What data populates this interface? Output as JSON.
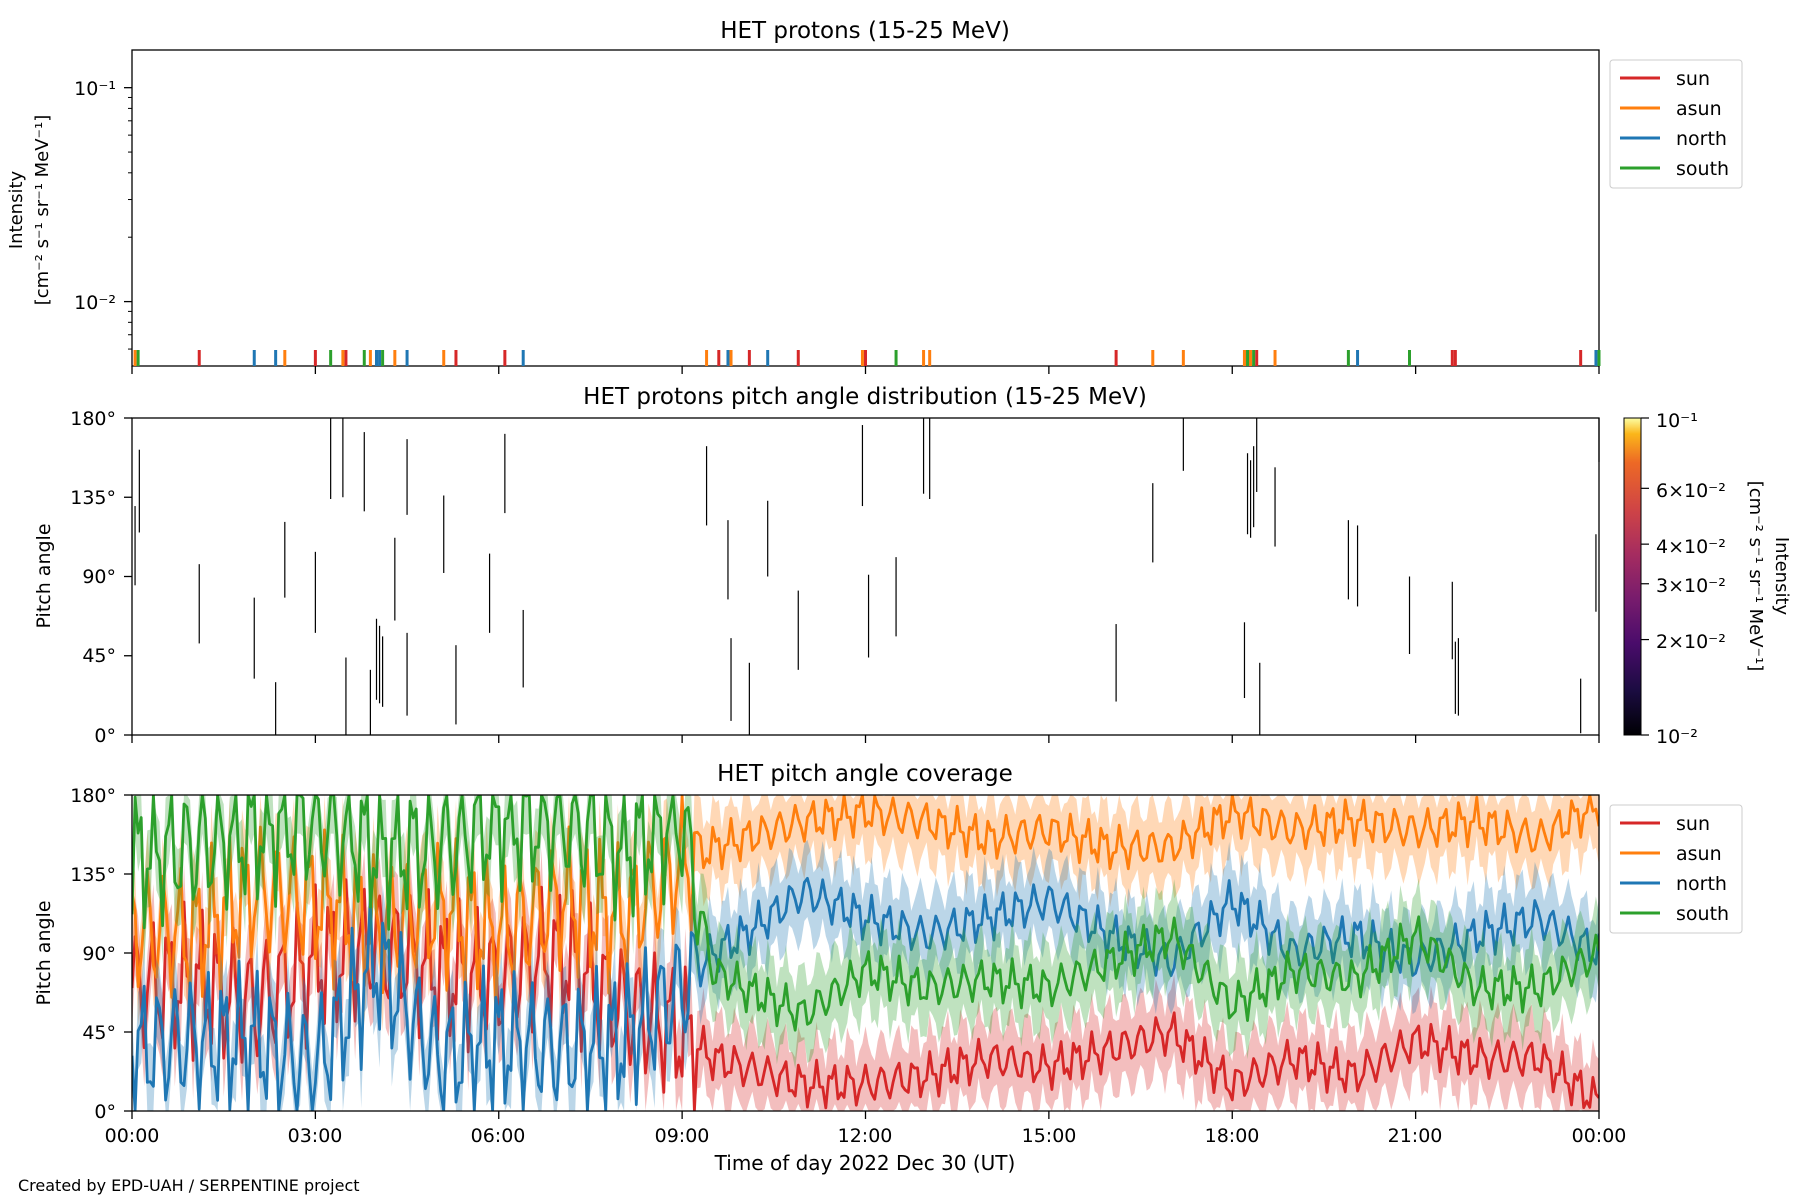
{
  "footer": {
    "credit": "Created by EPD-UAH / SERPENTINE project"
  },
  "colors": {
    "sun": "#d62728",
    "asun": "#ff7f0e",
    "north": "#1f77b4",
    "south": "#2ca02c"
  },
  "chart_data": [
    {
      "type": "line",
      "title": "HET protons (15-25 MeV)",
      "ylabel_line1": "Intensity",
      "ylabel_line2": "[cm⁻² s⁻¹ sr⁻¹ MeV⁻¹]",
      "yscale": "log",
      "ylim": [
        0.005,
        0.15
      ],
      "y_tick_labels": [
        "10⁻¹",
        "10⁻²"
      ],
      "y_tick_values": [
        0.1,
        0.01
      ],
      "xlim": [
        0,
        24
      ],
      "legend": [
        "sun",
        "asun",
        "north",
        "south"
      ],
      "legend_position": "right",
      "series": [
        {
          "name": "sun",
          "times": [
            1.1,
            3.0,
            3.5,
            5.3,
            6.1,
            9.6,
            10.1,
            10.9,
            12.0,
            16.1,
            18.2,
            18.3,
            18.4,
            21.6,
            21.65,
            23.7
          ]
        },
        {
          "name": "asun",
          "times": [
            0.05,
            2.5,
            3.45,
            3.9,
            4.3,
            5.1,
            9.4,
            9.8,
            11.95,
            12.95,
            13.05,
            16.7,
            17.2,
            18.2,
            18.3,
            18.7
          ]
        },
        {
          "name": "north",
          "times": [
            2.0,
            2.35,
            4.0,
            4.05,
            4.5,
            6.4,
            9.75,
            10.4,
            20.05,
            23.95
          ]
        },
        {
          "name": "south",
          "times": [
            0.1,
            3.25,
            3.8,
            4.1,
            12.5,
            18.25,
            18.35,
            19.9,
            20.9,
            24.0
          ]
        }
      ]
    },
    {
      "type": "heatmap",
      "title": "HET protons pitch angle distribution (15-25 MeV)",
      "ylabel": "Pitch angle",
      "ylim": [
        0,
        180
      ],
      "y_tick_labels": [
        "180°",
        "135°",
        "90°",
        "45°",
        "0°"
      ],
      "y_tick_values": [
        180,
        135,
        90,
        45,
        0
      ],
      "xlim": [
        0,
        24
      ],
      "colorbar": {
        "label_line1": "Intensity",
        "label_line2": "[cm⁻² s⁻¹ sr⁻¹ MeV⁻¹]",
        "scale": "log",
        "range": [
          0.01,
          0.1
        ],
        "tick_labels": [
          "10⁻¹",
          "6×10⁻²",
          "4×10⁻²",
          "3×10⁻²",
          "2×10⁻²",
          "10⁻²"
        ],
        "tick_values": [
          0.1,
          0.06,
          0.04,
          0.03,
          0.02,
          0.01
        ]
      },
      "segments": [
        [
          0.05,
          85,
          130
        ],
        [
          0.12,
          115,
          162
        ],
        [
          1.1,
          52,
          97
        ],
        [
          2.0,
          32,
          78
        ],
        [
          2.35,
          0,
          30
        ],
        [
          2.5,
          78,
          121
        ],
        [
          3.0,
          58,
          104
        ],
        [
          3.25,
          134,
          180
        ],
        [
          3.5,
          0,
          44
        ],
        [
          3.45,
          135,
          180
        ],
        [
          3.8,
          127,
          172
        ],
        [
          3.9,
          0,
          37
        ],
        [
          4.0,
          20,
          66
        ],
        [
          4.05,
          18,
          62
        ],
        [
          4.1,
          16,
          56
        ],
        [
          4.3,
          65,
          112
        ],
        [
          4.5,
          11,
          58
        ],
        [
          4.5,
          125,
          168
        ],
        [
          5.1,
          92,
          136
        ],
        [
          5.3,
          6,
          51
        ],
        [
          5.85,
          58,
          103
        ],
        [
          6.1,
          126,
          171
        ],
        [
          6.4,
          27,
          71
        ],
        [
          9.4,
          119,
          164
        ],
        [
          9.75,
          77,
          122
        ],
        [
          9.8,
          8,
          55
        ],
        [
          10.1,
          0,
          41
        ],
        [
          10.4,
          90,
          133
        ],
        [
          10.9,
          37,
          82
        ],
        [
          11.95,
          130,
          176
        ],
        [
          12.05,
          44,
          91
        ],
        [
          12.5,
          56,
          101
        ],
        [
          12.95,
          137,
          180
        ],
        [
          13.05,
          134,
          180
        ],
        [
          16.1,
          19,
          63
        ],
        [
          16.7,
          98,
          143
        ],
        [
          17.2,
          150,
          180
        ],
        [
          18.2,
          21,
          64
        ],
        [
          18.25,
          114,
          160
        ],
        [
          18.3,
          112,
          156
        ],
        [
          18.35,
          118,
          164
        ],
        [
          18.4,
          138,
          180
        ],
        [
          18.45,
          0,
          41
        ],
        [
          18.7,
          107,
          152
        ],
        [
          19.9,
          77,
          122
        ],
        [
          20.05,
          73,
          119
        ],
        [
          20.9,
          46,
          90
        ],
        [
          21.6,
          43,
          87
        ],
        [
          21.65,
          12,
          53
        ],
        [
          21.7,
          11,
          55
        ],
        [
          23.7,
          1,
          32
        ],
        [
          23.95,
          70,
          114
        ],
        [
          24.0,
          155,
          180
        ]
      ]
    },
    {
      "type": "line",
      "title": "HET pitch angle coverage",
      "ylabel": "Pitch angle",
      "xlabel": "Time of day 2022 Dec 30 (UT)",
      "ylim": [
        0,
        180
      ],
      "y_tick_labels": [
        "180°",
        "135°",
        "90°",
        "45°",
        "0°"
      ],
      "y_tick_values": [
        180,
        135,
        90,
        45,
        0
      ],
      "xlim": [
        0,
        24
      ],
      "x_tick_labels": [
        "00:00",
        "03:00",
        "06:00",
        "09:00",
        "12:00",
        "15:00",
        "18:00",
        "21:00",
        "00:00"
      ],
      "x_tick_values": [
        0,
        3,
        6,
        9,
        12,
        15,
        18,
        21,
        24
      ],
      "legend": [
        "sun",
        "asun",
        "north",
        "south"
      ],
      "legend_position": "right",
      "series": [
        {
          "name": "sun",
          "x": [
            0,
            1,
            2,
            3,
            4,
            5,
            6,
            7,
            8,
            9,
            9.5,
            10,
            11,
            12,
            13,
            14,
            15,
            16,
            17,
            18,
            19,
            20,
            21,
            22,
            23,
            24
          ],
          "y": [
            70,
            75,
            60,
            85,
            95,
            80,
            75,
            90,
            60,
            45,
            30,
            25,
            15,
            15,
            20,
            30,
            25,
            35,
            45,
            15,
            30,
            20,
            40,
            30,
            30,
            5
          ]
        },
        {
          "name": "asun",
          "x": [
            0,
            1,
            2,
            3,
            4,
            5,
            6,
            7,
            8,
            9,
            9.5,
            10,
            11,
            12,
            13,
            14,
            15,
            16,
            17,
            18,
            19,
            20,
            21,
            22,
            23,
            24
          ],
          "y": [
            105,
            100,
            125,
            120,
            105,
            115,
            100,
            120,
            110,
            140,
            150,
            155,
            165,
            170,
            165,
            155,
            160,
            150,
            150,
            170,
            160,
            165,
            160,
            165,
            155,
            175
          ]
        },
        {
          "name": "north",
          "x": [
            0,
            1,
            2,
            3,
            4,
            5,
            6,
            7,
            8,
            9,
            9.5,
            10,
            11,
            12,
            13,
            14,
            15,
            16,
            17,
            18,
            19,
            20,
            21,
            22,
            23,
            24
          ],
          "y": [
            35,
            40,
            40,
            25,
            85,
            30,
            40,
            35,
            40,
            70,
            90,
            100,
            125,
            110,
            100,
            110,
            120,
            100,
            85,
            120,
            90,
            100,
            85,
            100,
            110,
            90
          ]
        },
        {
          "name": "south",
          "x": [
            0,
            1,
            2,
            3,
            4,
            5,
            6,
            7,
            8,
            9,
            9.5,
            10,
            11,
            12,
            13,
            14,
            15,
            16,
            17,
            18,
            19,
            20,
            21,
            22,
            23,
            24
          ],
          "y": [
            145,
            150,
            160,
            165,
            150,
            150,
            165,
            165,
            150,
            165,
            80,
            70,
            55,
            80,
            70,
            75,
            70,
            85,
            100,
            60,
            80,
            75,
            100,
            70,
            70,
            90
          ]
        }
      ]
    }
  ]
}
